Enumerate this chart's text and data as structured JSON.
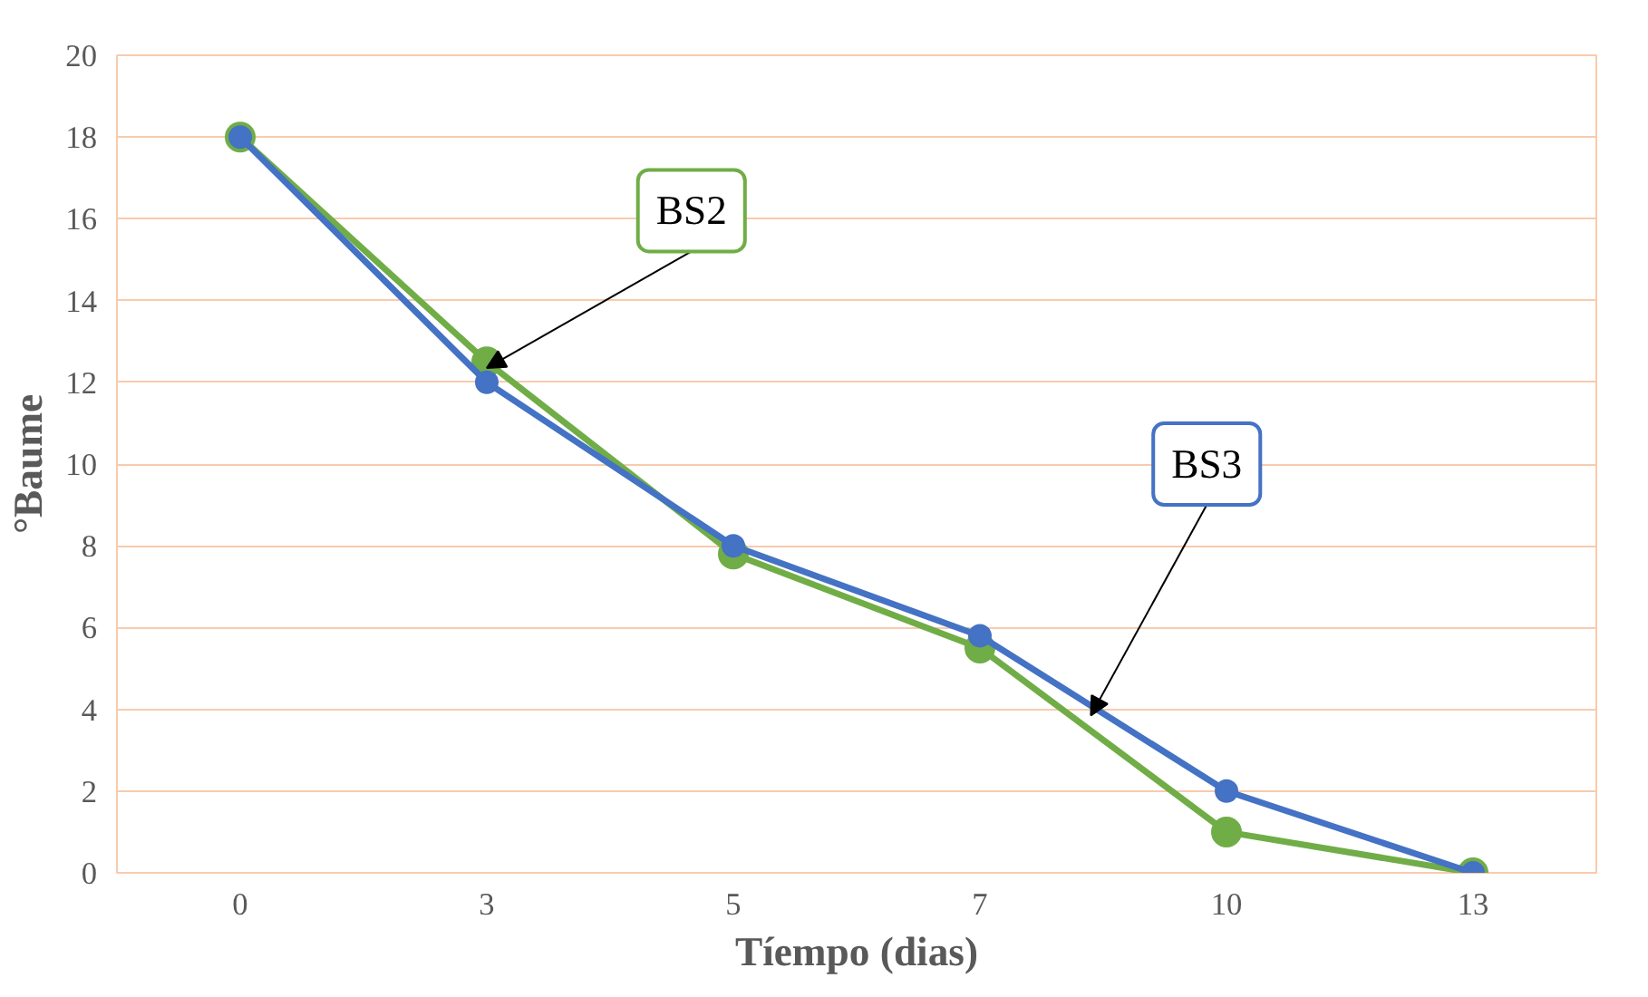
{
  "chart_data": {
    "type": "line",
    "xlabel": "Tíempo (dias)",
    "ylabel": "°Baume",
    "categories": [
      "0",
      "3",
      "5",
      "7",
      "10",
      "13"
    ],
    "series": [
      {
        "name": "BS2",
        "color": "#70ad47",
        "values": [
          18,
          12.5,
          7.8,
          5.5,
          1,
          0
        ]
      },
      {
        "name": "BS3",
        "color": "#4472c4",
        "values": [
          18,
          12,
          8,
          5.8,
          2,
          0
        ]
      }
    ],
    "ylim": [
      0,
      20
    ],
    "yticks": [
      0,
      2,
      4,
      6,
      8,
      10,
      12,
      14,
      16,
      18,
      20
    ],
    "grid": "y",
    "marker": "circle",
    "line_style": "solid",
    "legend": false
  }
}
